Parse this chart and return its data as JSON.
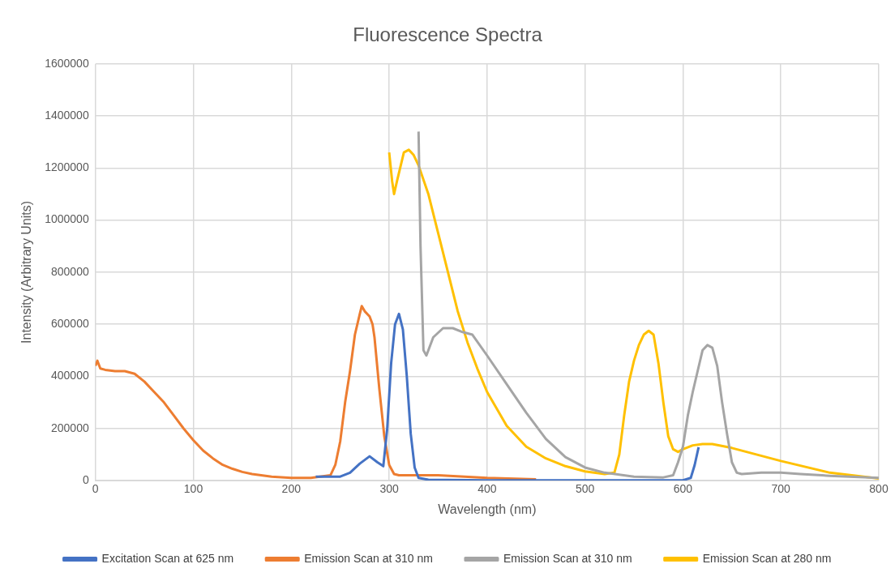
{
  "chart_data": {
    "type": "line",
    "title": "Fluorescence Spectra",
    "xlabel": "Wavelength (nm)",
    "ylabel": "Intensity (Arbitrary Units)",
    "xlim": [
      0,
      800
    ],
    "xticks": [
      0,
      100,
      200,
      300,
      400,
      500,
      600,
      700,
      800
    ],
    "ylim": [
      0,
      1600000
    ],
    "yticks": [
      0,
      200000,
      400000,
      600000,
      800000,
      1000000,
      1200000,
      1400000,
      1600000
    ],
    "grid": true,
    "legend": "bottom",
    "marker": "none",
    "line_style": "solid",
    "series": [
      {
        "name": "Excitation Scan at 625 nm",
        "color": "#4472c4",
        "x": [
          225,
          250,
          260,
          270,
          280,
          288,
          294,
          298,
          302,
          306,
          310,
          314,
          318,
          322,
          326,
          330,
          340,
          400,
          500,
          600,
          608,
          612,
          616
        ],
        "values": [
          15000,
          15000,
          30000,
          65000,
          93000,
          70000,
          55000,
          200000,
          450000,
          600000,
          640000,
          580000,
          400000,
          180000,
          50000,
          10000,
          3000,
          1000,
          1000,
          1000,
          10000,
          60000,
          128000
        ]
      },
      {
        "name": "Emission Scan at 310 nm",
        "color": "#ed7d31",
        "x": [
          0,
          2,
          5,
          10,
          20,
          30,
          40,
          50,
          60,
          70,
          80,
          90,
          100,
          110,
          120,
          130,
          140,
          150,
          160,
          180,
          200,
          220,
          240,
          245,
          250,
          255,
          260,
          265,
          270,
          272,
          275,
          280,
          283,
          285,
          290,
          295,
          300,
          305,
          310,
          350,
          400,
          450
        ],
        "values": [
          440000,
          460000,
          430000,
          425000,
          420000,
          420000,
          410000,
          380000,
          340000,
          300000,
          250000,
          200000,
          155000,
          115000,
          85000,
          60000,
          45000,
          33000,
          25000,
          15000,
          10000,
          10000,
          20000,
          60000,
          150000,
          300000,
          420000,
          560000,
          640000,
          670000,
          650000,
          630000,
          600000,
          550000,
          350000,
          170000,
          60000,
          25000,
          20000,
          20000,
          10000,
          5000
        ]
      },
      {
        "name": "Emission Scan at 310 nm",
        "color": "#a5a5a5",
        "x": [
          330,
          332,
          335,
          338,
          345,
          355,
          365,
          375,
          385,
          400,
          420,
          440,
          460,
          480,
          500,
          520,
          550,
          580,
          590,
          595,
          600,
          605,
          610,
          615,
          620,
          625,
          630,
          635,
          640,
          645,
          650,
          655,
          660,
          680,
          700,
          720,
          750,
          800
        ],
        "values": [
          1340000,
          900000,
          500000,
          480000,
          550000,
          585000,
          585000,
          570000,
          560000,
          480000,
          370000,
          260000,
          160000,
          90000,
          50000,
          30000,
          15000,
          12000,
          20000,
          70000,
          130000,
          250000,
          340000,
          420000,
          500000,
          520000,
          510000,
          440000,
          300000,
          180000,
          70000,
          30000,
          25000,
          30000,
          30000,
          25000,
          18000,
          10000
        ]
      },
      {
        "name": "Emission Scan at 280 nm",
        "color": "#ffc000",
        "x": [
          300,
          303,
          305,
          308,
          315,
          320,
          325,
          330,
          340,
          350,
          360,
          370,
          380,
          390,
          400,
          420,
          440,
          460,
          480,
          500,
          520,
          530,
          535,
          540,
          545,
          550,
          555,
          560,
          565,
          570,
          575,
          580,
          585,
          590,
          595,
          600,
          610,
          620,
          630,
          650,
          700,
          750,
          800
        ],
        "values": [
          1260000,
          1150000,
          1100000,
          1150000,
          1260000,
          1270000,
          1250000,
          1210000,
          1100000,
          950000,
          800000,
          650000,
          530000,
          430000,
          340000,
          210000,
          130000,
          85000,
          55000,
          35000,
          25000,
          30000,
          100000,
          250000,
          380000,
          460000,
          520000,
          560000,
          575000,
          560000,
          450000,
          300000,
          170000,
          120000,
          110000,
          120000,
          135000,
          140000,
          140000,
          125000,
          75000,
          30000,
          8000
        ]
      }
    ]
  }
}
